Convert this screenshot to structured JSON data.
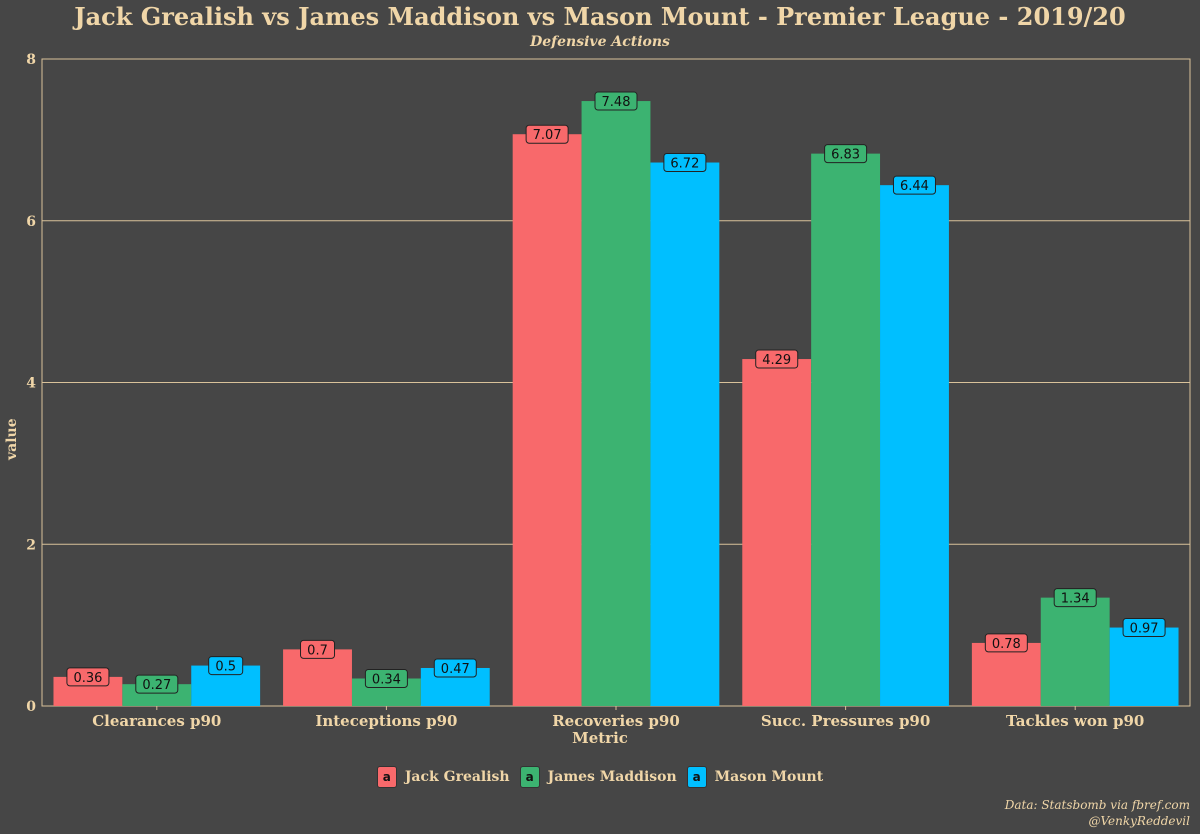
{
  "title": "Jack Grealish vs James Maddison vs Mason Mount - Premier League - 2019/20",
  "subtitle": "Defensive Actions",
  "caption": {
    "line1": "Data: Statsbomb via fbref.com",
    "line2": "@VenkyReddevil"
  },
  "legend": {
    "key_letter": "a"
  },
  "chart_data": {
    "type": "bar",
    "title": "Jack Grealish vs James Maddison vs Mason Mount - Premier League - 2019/20",
    "subtitle": "Defensive Actions",
    "xlabel": "Metric",
    "ylabel": "value",
    "ylim": [
      0,
      8
    ],
    "yticks": [
      0,
      2,
      4,
      6,
      8
    ],
    "grid": "horizontal",
    "legend_position": "bottom",
    "categories": [
      "Clearances p90",
      "Inteceptions p90",
      "Recoveries p90",
      "Succ. Pressures p90",
      "Tackles won p90"
    ],
    "series": [
      {
        "name": "Jack Grealish",
        "color": "#F8696B",
        "values": [
          0.36,
          0.7,
          7.07,
          4.29,
          0.78
        ]
      },
      {
        "name": "James Maddison",
        "color": "#3CB371",
        "values": [
          0.27,
          0.34,
          7.48,
          6.83,
          1.34
        ]
      },
      {
        "name": "Mason Mount",
        "color": "#00BFFF",
        "values": [
          0.5,
          0.47,
          6.72,
          6.44,
          0.97
        ]
      }
    ]
  }
}
